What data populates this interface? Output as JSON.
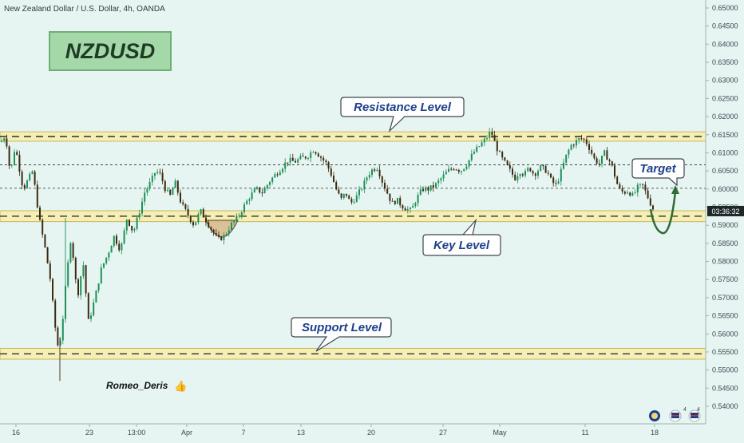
{
  "chart_data": {
    "type": "candlestick",
    "title": "New Zealand Dollar / U.S. Dollar, 4h, OANDA",
    "symbol_badge": "NZDUSD",
    "author": "Romeo_Deris",
    "thumb_glyph": "👍",
    "price_tag": "03:36:32",
    "ylim": [
      0.5375,
      0.6525
    ],
    "y_ticks": [
      "0.65000",
      "0.64500",
      "0.64000",
      "0.63500",
      "0.63000",
      "0.62500",
      "0.62000",
      "0.61500",
      "0.61000",
      "0.60500",
      "0.60000",
      "0.59500",
      "0.59000",
      "0.58500",
      "0.58000",
      "0.57500",
      "0.57000",
      "0.56500",
      "0.56000",
      "0.55500",
      "0.55000",
      "0.54500",
      "0.54000"
    ],
    "x_ticks": [
      "16",
      "23",
      "13:00",
      "Apr",
      "7",
      "13",
      "20",
      "27",
      "May",
      "11",
      "18"
    ],
    "zones": [
      {
        "name": "Resistance Level",
        "low": 0.6132,
        "high": 0.6158,
        "line": 0.6145
      },
      {
        "name": "Key Level",
        "low": 0.591,
        "high": 0.594,
        "line": 0.5925
      },
      {
        "name": "Support Level",
        "low": 0.553,
        "high": 0.556,
        "line": 0.5545
      }
    ],
    "dashed_levels": [
      0.6067,
      0.6002
    ],
    "annotations": [
      {
        "text": "Resistance Level"
      },
      {
        "text": "Key Level"
      },
      {
        "text": "Support Level"
      },
      {
        "text": "Target"
      }
    ],
    "projection": {
      "from": 0.5935,
      "low": 0.5885,
      "target": 0.6005
    },
    "colors": {
      "background": "#e6f5f1",
      "up_candle": "#1e8f5a",
      "down_candle": "#3a2a12",
      "zone_fill": "#f5eeb5",
      "zone_border": "#c9b860",
      "badge_fill": "#a5d8a8",
      "badge_text": "#1d3b25",
      "arrow": "#2e6b36",
      "callout_text": "#1d3f8a"
    },
    "series_path": [
      {
        "x": 0,
        "y": 0.613
      },
      {
        "x": 6,
        "y": 0.615
      },
      {
        "x": 12,
        "y": 0.604
      },
      {
        "x": 18,
        "y": 0.612
      },
      {
        "x": 28,
        "y": 0.6
      },
      {
        "x": 40,
        "y": 0.605
      },
      {
        "x": 48,
        "y": 0.592
      },
      {
        "x": 56,
        "y": 0.583
      },
      {
        "x": 62,
        "y": 0.575
      },
      {
        "x": 68,
        "y": 0.562
      },
      {
        "x": 72,
        "y": 0.556
      },
      {
        "x": 76,
        "y": 0.56
      },
      {
        "x": 82,
        "y": 0.575
      },
      {
        "x": 88,
        "y": 0.587
      },
      {
        "x": 96,
        "y": 0.57
      },
      {
        "x": 103,
        "y": 0.58
      },
      {
        "x": 110,
        "y": 0.563
      },
      {
        "x": 118,
        "y": 0.57
      },
      {
        "x": 126,
        "y": 0.578
      },
      {
        "x": 134,
        "y": 0.582
      },
      {
        "x": 142,
        "y": 0.587
      },
      {
        "x": 150,
        "y": 0.583
      },
      {
        "x": 158,
        "y": 0.592
      },
      {
        "x": 166,
        "y": 0.588
      },
      {
        "x": 174,
        "y": 0.594
      },
      {
        "x": 180,
        "y": 0.599
      },
      {
        "x": 188,
        "y": 0.602
      },
      {
        "x": 194,
        "y": 0.605
      },
      {
        "x": 200,
        "y": 0.604
      },
      {
        "x": 206,
        "y": 0.6
      },
      {
        "x": 212,
        "y": 0.598
      },
      {
        "x": 218,
        "y": 0.602
      },
      {
        "x": 226,
        "y": 0.596
      },
      {
        "x": 234,
        "y": 0.593
      },
      {
        "x": 242,
        "y": 0.59
      },
      {
        "x": 250,
        "y": 0.594
      },
      {
        "x": 258,
        "y": 0.591
      },
      {
        "x": 266,
        "y": 0.588
      },
      {
        "x": 272,
        "y": 0.586
      },
      {
        "x": 280,
        "y": 0.587
      },
      {
        "x": 288,
        "y": 0.59
      },
      {
        "x": 296,
        "y": 0.592
      },
      {
        "x": 304,
        "y": 0.595
      },
      {
        "x": 312,
        "y": 0.598
      },
      {
        "x": 320,
        "y": 0.6
      },
      {
        "x": 328,
        "y": 0.599
      },
      {
        "x": 336,
        "y": 0.602
      },
      {
        "x": 344,
        "y": 0.604
      },
      {
        "x": 352,
        "y": 0.606
      },
      {
        "x": 360,
        "y": 0.608
      },
      {
        "x": 368,
        "y": 0.6075
      },
      {
        "x": 376,
        "y": 0.6085
      },
      {
        "x": 384,
        "y": 0.609
      },
      {
        "x": 392,
        "y": 0.611
      },
      {
        "x": 400,
        "y": 0.609
      },
      {
        "x": 408,
        "y": 0.607
      },
      {
        "x": 414,
        "y": 0.604
      },
      {
        "x": 420,
        "y": 0.6
      },
      {
        "x": 426,
        "y": 0.597
      },
      {
        "x": 432,
        "y": 0.599
      },
      {
        "x": 438,
        "y": 0.596
      },
      {
        "x": 446,
        "y": 0.598
      },
      {
        "x": 454,
        "y": 0.601
      },
      {
        "x": 460,
        "y": 0.604
      },
      {
        "x": 466,
        "y": 0.6055
      },
      {
        "x": 472,
        "y": 0.606
      },
      {
        "x": 478,
        "y": 0.602
      },
      {
        "x": 484,
        "y": 0.599
      },
      {
        "x": 490,
        "y": 0.596
      },
      {
        "x": 496,
        "y": 0.597
      },
      {
        "x": 502,
        "y": 0.5955
      },
      {
        "x": 508,
        "y": 0.5945
      },
      {
        "x": 514,
        "y": 0.594
      },
      {
        "x": 520,
        "y": 0.597
      },
      {
        "x": 528,
        "y": 0.6
      },
      {
        "x": 536,
        "y": 0.6
      },
      {
        "x": 544,
        "y": 0.601
      },
      {
        "x": 552,
        "y": 0.603
      },
      {
        "x": 560,
        "y": 0.605
      },
      {
        "x": 568,
        "y": 0.606
      },
      {
        "x": 576,
        "y": 0.605
      },
      {
        "x": 584,
        "y": 0.607
      },
      {
        "x": 592,
        "y": 0.61
      },
      {
        "x": 600,
        "y": 0.612
      },
      {
        "x": 608,
        "y": 0.614
      },
      {
        "x": 614,
        "y": 0.616
      },
      {
        "x": 620,
        "y": 0.612
      },
      {
        "x": 626,
        "y": 0.609
      },
      {
        "x": 632,
        "y": 0.607
      },
      {
        "x": 638,
        "y": 0.605
      },
      {
        "x": 644,
        "y": 0.603
      },
      {
        "x": 650,
        "y": 0.605
      },
      {
        "x": 656,
        "y": 0.604
      },
      {
        "x": 662,
        "y": 0.606
      },
      {
        "x": 668,
        "y": 0.604
      },
      {
        "x": 676,
        "y": 0.606
      },
      {
        "x": 684,
        "y": 0.605
      },
      {
        "x": 690,
        "y": 0.602
      },
      {
        "x": 696,
        "y": 0.601
      },
      {
        "x": 702,
        "y": 0.605
      },
      {
        "x": 708,
        "y": 0.609
      },
      {
        "x": 714,
        "y": 0.612
      },
      {
        "x": 720,
        "y": 0.613
      },
      {
        "x": 726,
        "y": 0.614
      },
      {
        "x": 732,
        "y": 0.6135
      },
      {
        "x": 738,
        "y": 0.611
      },
      {
        "x": 744,
        "y": 0.608
      },
      {
        "x": 750,
        "y": 0.607
      },
      {
        "x": 756,
        "y": 0.61
      },
      {
        "x": 762,
        "y": 0.608
      },
      {
        "x": 766,
        "y": 0.606
      },
      {
        "x": 770,
        "y": 0.603
      },
      {
        "x": 774,
        "y": 0.6
      },
      {
        "x": 780,
        "y": 0.599
      },
      {
        "x": 786,
        "y": 0.5995
      },
      {
        "x": 792,
        "y": 0.598
      },
      {
        "x": 798,
        "y": 0.6005
      },
      {
        "x": 804,
        "y": 0.601
      },
      {
        "x": 810,
        "y": 0.598
      },
      {
        "x": 816,
        "y": 0.595
      },
      {
        "x": 820,
        "y": 0.5935
      }
    ]
  },
  "chart_icons": [
    "globe-icon",
    "flag-icon",
    "flag-icon"
  ],
  "icon_badges": [
    "4",
    "4"
  ]
}
